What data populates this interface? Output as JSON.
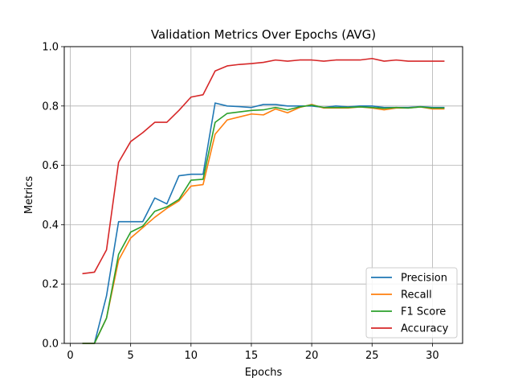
{
  "chart_data": {
    "type": "line",
    "title": "Validation Metrics Over Epochs (AVG)",
    "xlabel": "Epochs",
    "ylabel": "Metrics",
    "xlim": [
      -0.5,
      32.5
    ],
    "ylim": [
      0,
      1.0
    ],
    "xticks": [
      0,
      5,
      10,
      15,
      20,
      25,
      30
    ],
    "yticks": [
      0.0,
      0.2,
      0.4,
      0.6,
      0.8,
      1.0
    ],
    "xtick_labels": [
      "0",
      "5",
      "10",
      "15",
      "20",
      "25",
      "30"
    ],
    "ytick_labels": [
      "0.0",
      "0.2",
      "0.4",
      "0.6",
      "0.8",
      "1.0"
    ],
    "grid": true,
    "legend_position": "bottom-right",
    "x": [
      1,
      2,
      3,
      4,
      5,
      6,
      7,
      8,
      9,
      10,
      11,
      12,
      13,
      14,
      15,
      16,
      17,
      18,
      19,
      20,
      21,
      22,
      23,
      24,
      25,
      26,
      27,
      28,
      29,
      30,
      31
    ],
    "series": [
      {
        "name": "Precision",
        "color": "#1f77b4",
        "values": [
          0,
          0,
          0.16,
          0.41,
          0.41,
          0.41,
          0.49,
          0.47,
          0.565,
          0.57,
          0.57,
          0.81,
          0.8,
          0.798,
          0.795,
          0.805,
          0.805,
          0.8,
          0.8,
          0.8,
          0.795,
          0.8,
          0.797,
          0.8,
          0.8,
          0.795,
          0.795,
          0.795,
          0.798,
          0.795,
          0.795
        ]
      },
      {
        "name": "Recall",
        "color": "#ff7f0e",
        "values": [
          0,
          0,
          0.085,
          0.28,
          0.355,
          0.39,
          0.425,
          0.455,
          0.48,
          0.53,
          0.535,
          0.705,
          0.753,
          0.763,
          0.773,
          0.77,
          0.79,
          0.777,
          0.795,
          0.805,
          0.793,
          0.793,
          0.793,
          0.797,
          0.793,
          0.787,
          0.793,
          0.793,
          0.797,
          0.79,
          0.79
        ]
      },
      {
        "name": "F1 Score",
        "color": "#2ca02c",
        "values": [
          0,
          0,
          0.085,
          0.3,
          0.375,
          0.395,
          0.445,
          0.46,
          0.485,
          0.55,
          0.553,
          0.745,
          0.775,
          0.78,
          0.785,
          0.787,
          0.795,
          0.787,
          0.797,
          0.803,
          0.795,
          0.795,
          0.795,
          0.797,
          0.795,
          0.792,
          0.795,
          0.793,
          0.797,
          0.793,
          0.793
        ]
      },
      {
        "name": "Accuracy",
        "color": "#d62728",
        "values": [
          0.235,
          0.24,
          0.315,
          0.61,
          0.68,
          0.71,
          0.745,
          0.745,
          0.785,
          0.83,
          0.838,
          0.918,
          0.935,
          0.94,
          0.943,
          0.947,
          0.955,
          0.951,
          0.955,
          0.955,
          0.951,
          0.955,
          0.955,
          0.955,
          0.96,
          0.951,
          0.955,
          0.951,
          0.951,
          0.951,
          0.951
        ]
      }
    ]
  }
}
